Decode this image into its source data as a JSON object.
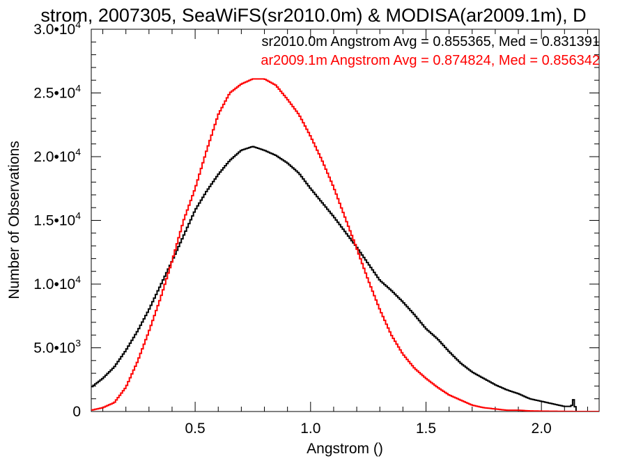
{
  "chart_data": {
    "type": "line",
    "title": "strom, 2007305, SeaWiFS(sr2010.0m) & MODISA(ar2009.1m), D",
    "xlabel": "Angstrom ()",
    "ylabel": "Number of Observations",
    "xlim": [
      0.05,
      2.25
    ],
    "ylim": [
      0,
      30000
    ],
    "x_ticks": [
      {
        "value": 0.5,
        "label": "0.5"
      },
      {
        "value": 1.0,
        "label": "1.0"
      },
      {
        "value": 1.5,
        "label": "1.5"
      },
      {
        "value": 2.0,
        "label": "2.0"
      }
    ],
    "y_ticks": [
      {
        "value": 0,
        "mantissa": "0",
        "exp": ""
      },
      {
        "value": 5000,
        "mantissa": "5.0•10",
        "exp": "3"
      },
      {
        "value": 10000,
        "mantissa": "1.0•10",
        "exp": "4"
      },
      {
        "value": 15000,
        "mantissa": "1.5•10",
        "exp": "4"
      },
      {
        "value": 20000,
        "mantissa": "2.0•10",
        "exp": "4"
      },
      {
        "value": 25000,
        "mantissa": "2.5•10",
        "exp": "4"
      },
      {
        "value": 30000,
        "mantissa": "3.0•10",
        "exp": "4"
      }
    ],
    "legend_placement": "top-right",
    "grid": false,
    "series": [
      {
        "name": "sr2010.0m Angstrom Avg = 0.855365, Med = 0.831391",
        "color": "#000000",
        "x": [
          0.05,
          0.1,
          0.15,
          0.2,
          0.25,
          0.3,
          0.35,
          0.4,
          0.45,
          0.5,
          0.55,
          0.6,
          0.65,
          0.7,
          0.75,
          0.8,
          0.85,
          0.9,
          0.95,
          1.0,
          1.05,
          1.1,
          1.15,
          1.2,
          1.25,
          1.3,
          1.35,
          1.4,
          1.45,
          1.5,
          1.55,
          1.6,
          1.65,
          1.7,
          1.75,
          1.8,
          1.85,
          1.9,
          1.95,
          2.0,
          2.05,
          2.1,
          2.13,
          2.14,
          2.15,
          2.25
        ],
        "y": [
          1900,
          2600,
          3500,
          4800,
          6300,
          8000,
          9900,
          11800,
          13800,
          15800,
          17300,
          18600,
          19700,
          20500,
          20800,
          20500,
          20100,
          19500,
          18700,
          17500,
          16400,
          15300,
          14100,
          12900,
          11600,
          10300,
          9500,
          8600,
          7600,
          6500,
          5700,
          4700,
          3800,
          3100,
          2600,
          2100,
          1700,
          1400,
          1000,
          800,
          600,
          400,
          400,
          1000,
          0,
          0
        ]
      },
      {
        "name": "ar2009.1m Angstrom Avg = 0.874824, Med = 0.856342",
        "color": "#ff0000",
        "x": [
          0.05,
          0.1,
          0.15,
          0.2,
          0.25,
          0.3,
          0.35,
          0.4,
          0.45,
          0.5,
          0.55,
          0.6,
          0.65,
          0.7,
          0.75,
          0.8,
          0.85,
          0.9,
          0.95,
          1.0,
          1.05,
          1.1,
          1.15,
          1.2,
          1.25,
          1.3,
          1.35,
          1.4,
          1.45,
          1.5,
          1.55,
          1.6,
          1.65,
          1.7,
          1.75,
          1.8,
          1.85,
          1.9,
          1.95,
          2.0,
          2.05,
          2.1,
          2.15,
          2.2,
          2.25
        ],
        "y": [
          100,
          300,
          700,
          1900,
          3900,
          6300,
          8900,
          11800,
          15000,
          17500,
          20500,
          23300,
          25000,
          25700,
          26100,
          26100,
          25600,
          24500,
          23300,
          21600,
          19700,
          17600,
          15200,
          12800,
          10300,
          8000,
          6000,
          4500,
          3400,
          2600,
          1900,
          1300,
          900,
          500,
          300,
          200,
          100,
          100,
          50,
          30,
          20,
          10,
          0,
          0,
          0
        ]
      }
    ]
  }
}
